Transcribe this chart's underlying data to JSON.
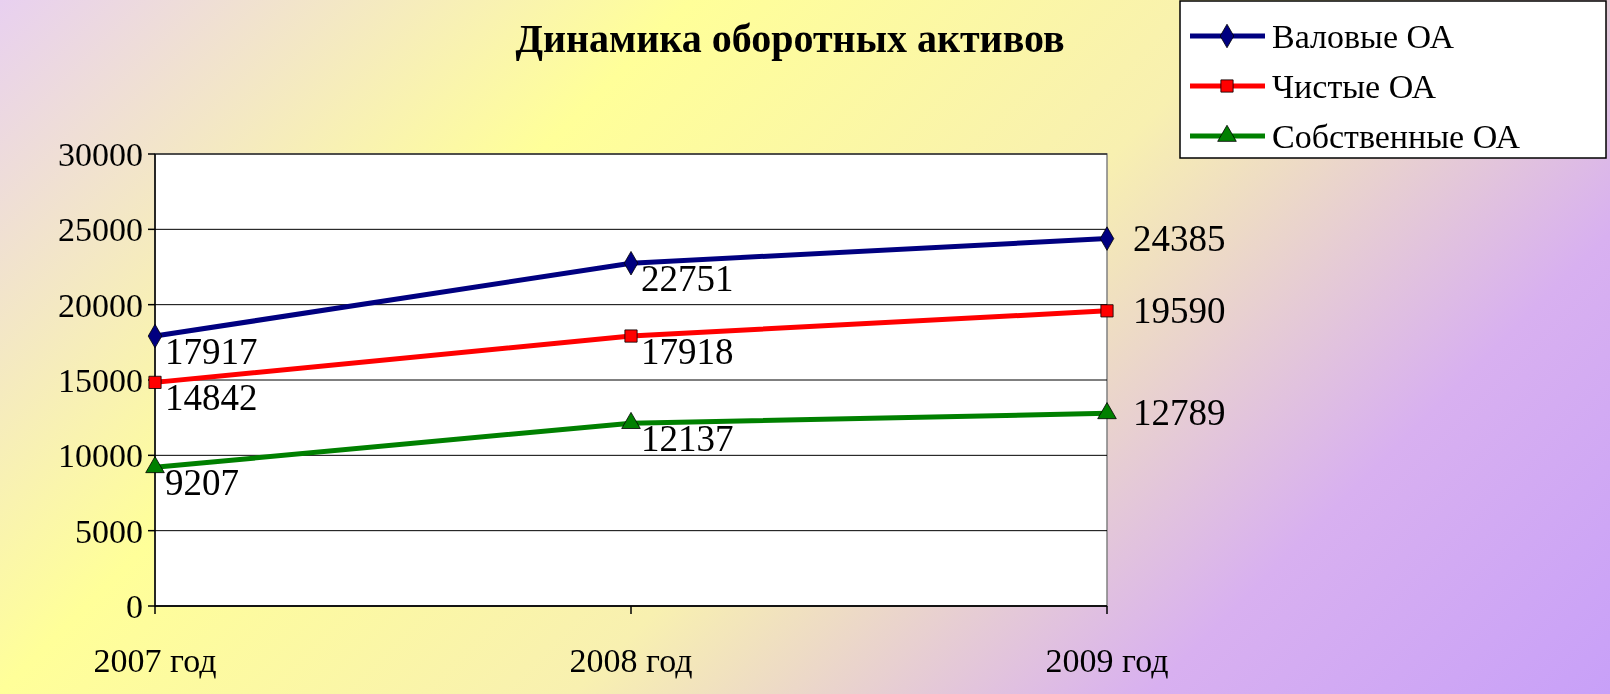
{
  "chart_data": {
    "type": "line",
    "title": "Динамика оборотных активов",
    "categories": [
      "2007 год",
      "2008 год",
      "2009 год"
    ],
    "series": [
      {
        "name": "Валовые ОА",
        "color": "#000080",
        "marker": "diamond",
        "values": [
          17917,
          22751,
          24385
        ]
      },
      {
        "name": "Чистые ОА",
        "color": "#ff0000",
        "marker": "square",
        "values": [
          14842,
          17918,
          19590
        ]
      },
      {
        "name": "Собственные ОА",
        "color": "#008000",
        "marker": "triangle",
        "values": [
          9207,
          12137,
          12789
        ]
      }
    ],
    "ylim": [
      0,
      30000
    ],
    "yticks": [
      0,
      5000,
      10000,
      15000,
      20000,
      25000,
      30000
    ],
    "grid": "y",
    "legend": "top right",
    "data_labels": true
  }
}
